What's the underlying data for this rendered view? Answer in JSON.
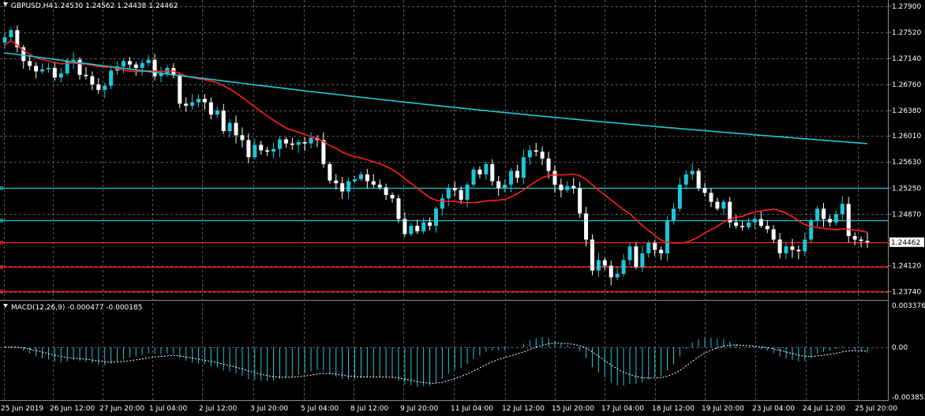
{
  "header": {
    "symbol_tf": "GBPUSD,H4",
    "ohlc": "1.24530 1.24562 1.24438 1.24462"
  },
  "chart_data": {
    "type": "candlestick",
    "symbol": "GBPUSD",
    "timeframe": "H4",
    "price_axis": {
      "ticks": [
        "1.27900",
        "1.27520",
        "1.27140",
        "1.26760",
        "1.26380",
        "1.26010",
        "1.25630",
        "1.25250",
        "1.24870",
        "1.24120",
        "1.23740"
      ],
      "min": 1.2362,
      "max": 1.2799
    },
    "current_price": "1.24462",
    "time_axis": [
      "25 Jun 2019",
      "26 Jun 12:00",
      "27 Jun 20:00",
      "1 Jul 04:00",
      "2 Jul 12:00",
      "3 Jul 20:00",
      "5 Jul 04:00",
      "8 Jul 12:00",
      "9 Jul 20:00",
      "11 Jul 04:00",
      "12 Jul 12:00",
      "15 Jul 20:00",
      "17 Jul 04:00",
      "18 Jul 12:00",
      "19 Jul 20:00",
      "23 Jul 04:00",
      "24 Jul 12:00",
      "25 Jul 20:00"
    ],
    "closes": [
      1.2745,
      1.2755,
      1.273,
      1.271,
      1.2703,
      1.2695,
      1.2698,
      1.27,
      1.2686,
      1.2692,
      1.271,
      1.2712,
      1.269,
      1.2688,
      1.2676,
      1.2668,
      1.2674,
      1.2696,
      1.2702,
      1.271,
      1.2705,
      1.27,
      1.2707,
      1.2712,
      1.2688,
      1.2692,
      1.27,
      1.2689,
      1.2648,
      1.2645,
      1.265,
      1.2655,
      1.265,
      1.2632,
      1.2638,
      1.2608,
      1.262,
      1.2602,
      1.2595,
      1.257,
      1.2588,
      1.258,
      1.2578,
      1.2582,
      1.2596,
      1.259,
      1.2588,
      1.2592,
      1.259,
      1.2598,
      1.2595,
      1.256,
      1.2536,
      1.2532,
      1.252,
      1.2535,
      1.2538,
      1.2545,
      1.2535,
      1.253,
      1.2526,
      1.2515,
      1.251,
      1.248,
      1.2458,
      1.247,
      1.2462,
      1.2475,
      1.247,
      1.2495,
      1.251,
      1.2525,
      1.2522,
      1.2508,
      1.253,
      1.2552,
      1.2545,
      1.256,
      1.2535,
      1.2525,
      1.253,
      1.255,
      1.254,
      1.257,
      1.258,
      1.2578,
      1.2568,
      1.255,
      1.253,
      1.2522,
      1.2528,
      1.2525,
      1.2488,
      1.245,
      1.2405,
      1.242,
      1.2412,
      1.2395,
      1.24,
      1.242,
      1.244,
      1.241,
      1.243,
      1.2445,
      1.2435,
      1.243,
      1.2478,
      1.2495,
      1.253,
      1.2545,
      1.255,
      1.2525,
      1.2518,
      1.2505,
      1.2495,
      1.2505,
      1.2475,
      1.247,
      1.2468,
      1.2475,
      1.248,
      1.247,
      1.2465,
      1.245,
      1.243,
      1.244,
      1.2435,
      1.2433,
      1.245,
      1.2478,
      1.2495,
      1.248,
      1.2475,
      1.2487,
      1.2502,
      1.2455,
      1.245,
      1.2448,
      1.2446
    ],
    "indicators": [
      {
        "name": "MA",
        "color": "#ff2020"
      },
      {
        "name": "MA",
        "color": "#1cc8d8"
      }
    ],
    "levels": [
      {
        "price": 1.2525,
        "color": "#1cc8d8"
      },
      {
        "price": 1.2478,
        "color": "#1cc8d8"
      },
      {
        "price": 1.2446,
        "color": "#ff2020"
      },
      {
        "price": 1.241,
        "color": "#ff2020"
      },
      {
        "price": 1.2375,
        "color": "#ff2020"
      }
    ],
    "macd": {
      "label": "MACD(12,26,9) -0.000477 -0.000185",
      "axis_ticks": [
        "0.003376",
        "0.00",
        "-0.003853"
      ],
      "max": 0.003376,
      "min": -0.003853
    }
  },
  "colors": {
    "bull_candle": "#1cc8d8",
    "bear_candle": "#ffffff",
    "grid": "#5a5a5a",
    "background": "#000000"
  }
}
